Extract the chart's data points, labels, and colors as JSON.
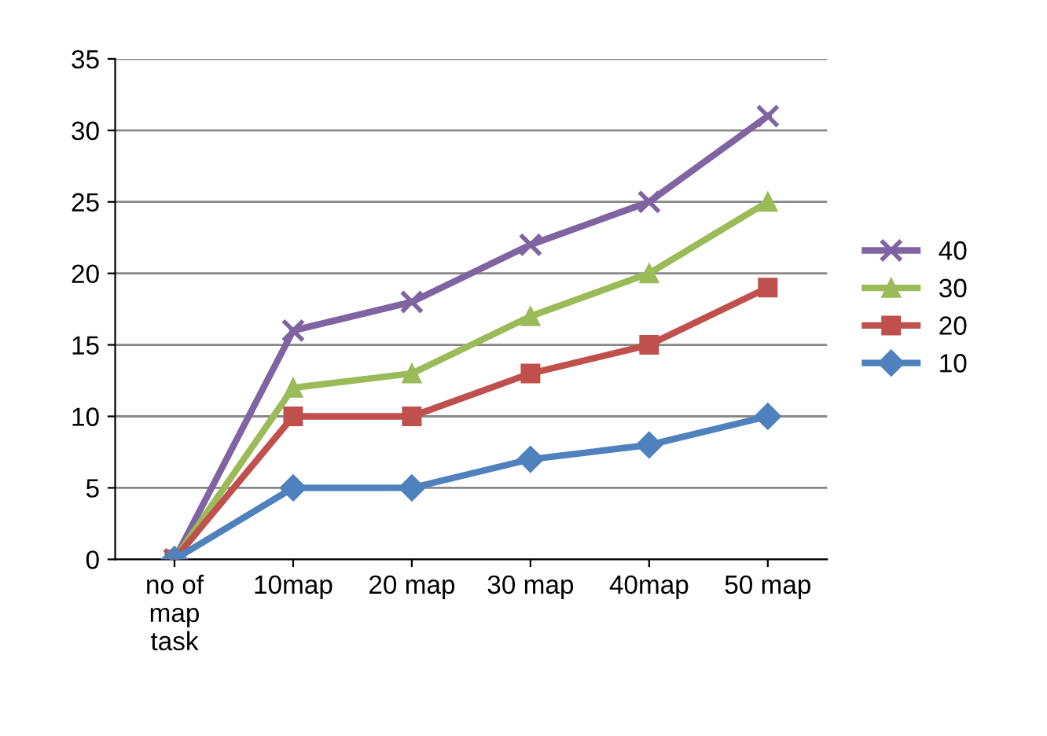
{
  "chart_data": {
    "type": "line",
    "categories": [
      "no of\nmap\ntask",
      "10map",
      "20 map",
      "30 map",
      "40map",
      "50 map"
    ],
    "series": [
      {
        "name": "40",
        "color": "#8064a2",
        "marker": "cross",
        "values": [
          0,
          16,
          18,
          22,
          25,
          31
        ]
      },
      {
        "name": "30",
        "color": "#9bbb59",
        "marker": "triangle",
        "values": [
          0,
          12,
          13,
          17,
          20,
          25
        ]
      },
      {
        "name": "20",
        "color": "#c0504d",
        "marker": "square",
        "values": [
          0,
          10,
          10,
          13,
          15,
          19
        ]
      },
      {
        "name": "10",
        "color": "#4f81bd",
        "marker": "diamond",
        "values": [
          0,
          5,
          5,
          7,
          8,
          10
        ]
      }
    ],
    "ylim": [
      0,
      35
    ],
    "yticks": [
      0,
      5,
      10,
      15,
      20,
      25,
      30,
      35
    ],
    "grid": "y",
    "legend": "right",
    "line_style": "solid"
  }
}
